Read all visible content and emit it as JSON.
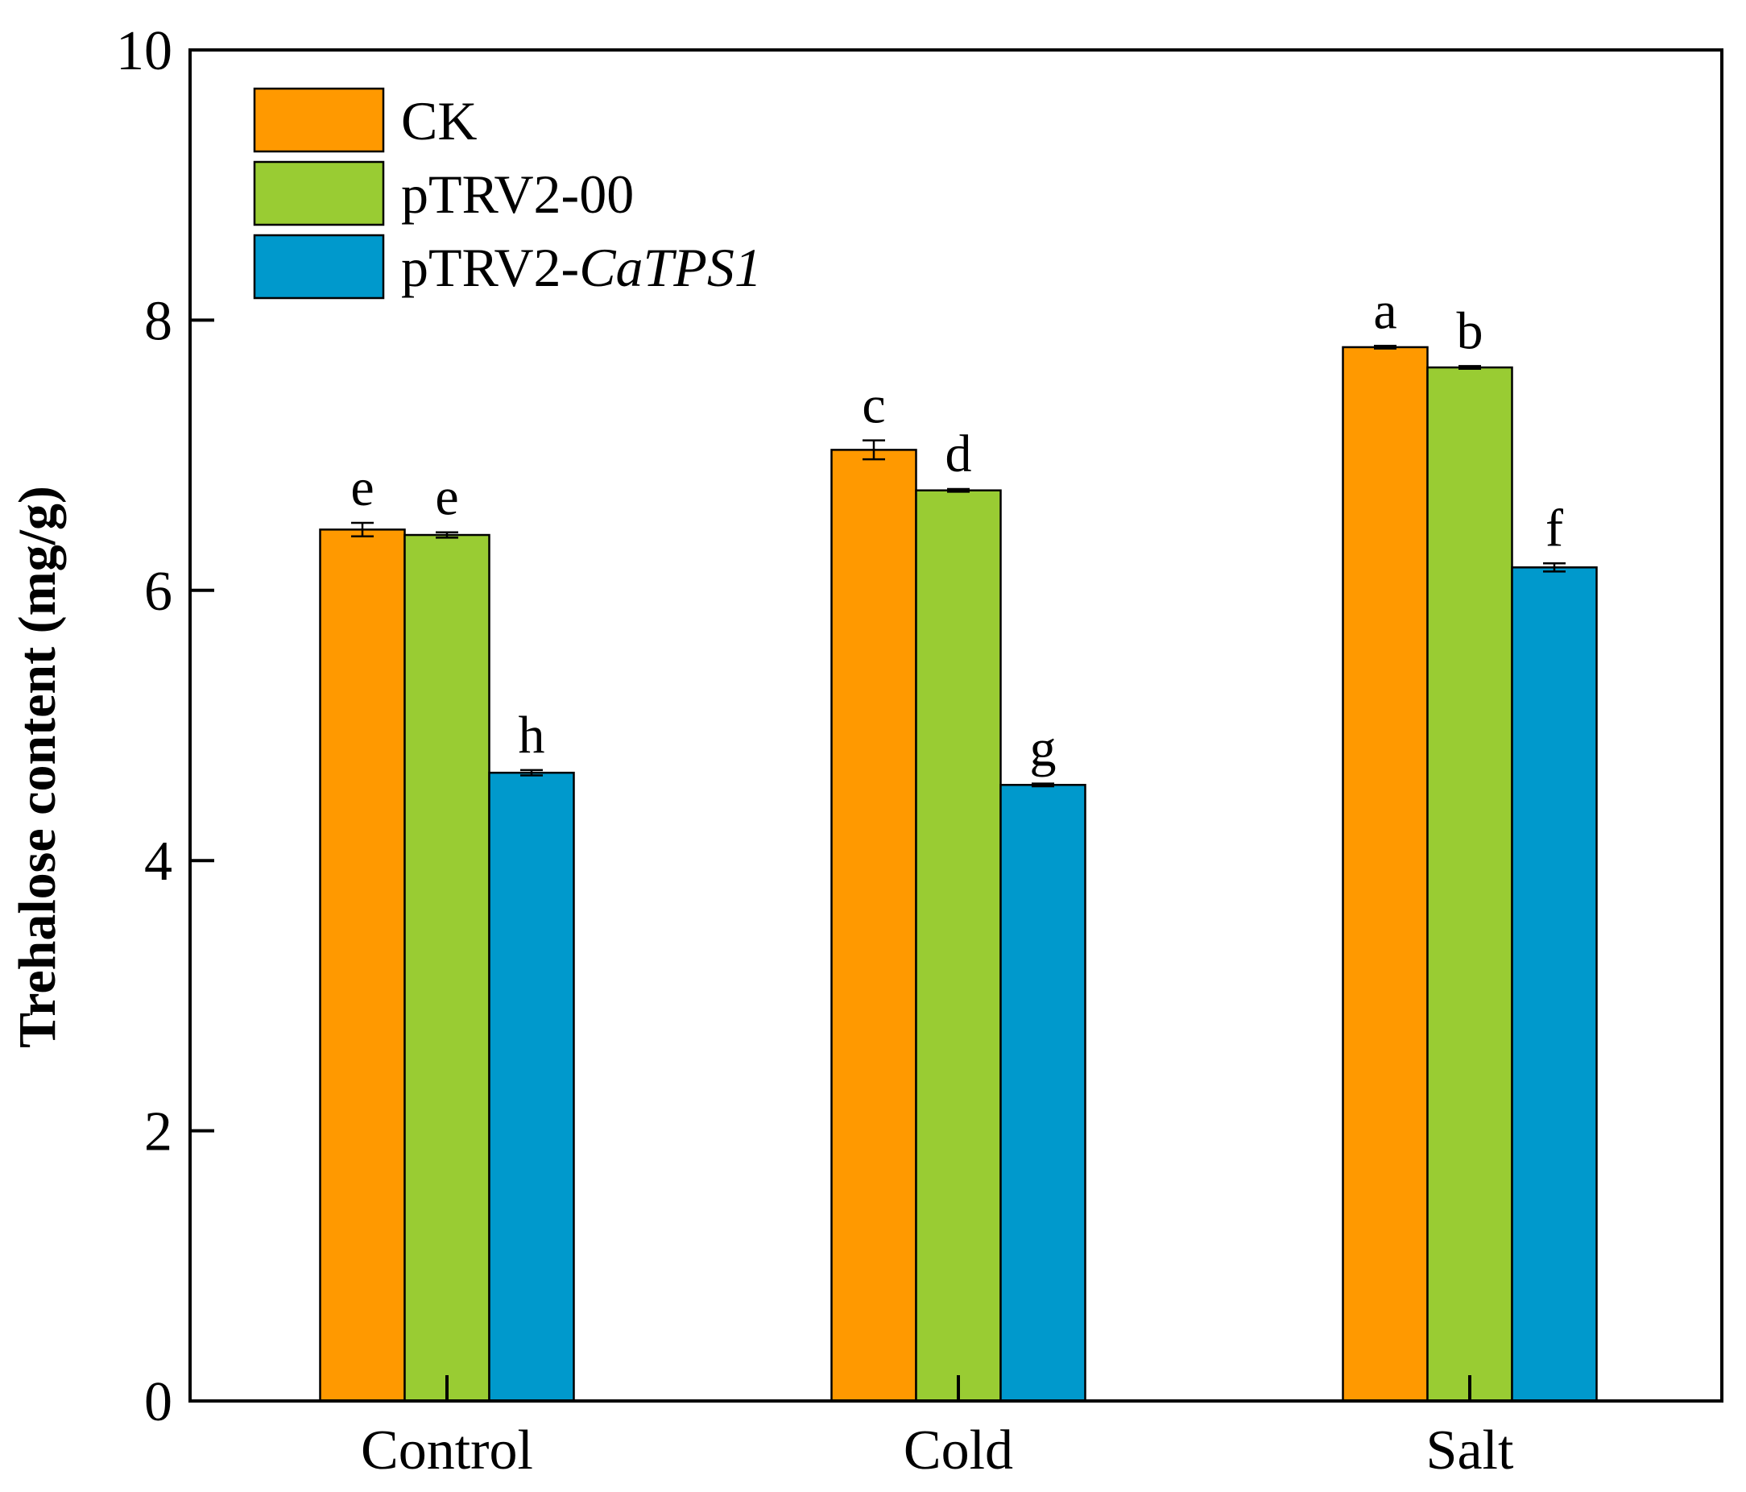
{
  "chart_data": {
    "type": "bar",
    "title": "",
    "xlabel": "",
    "ylabel": "Trehalose  content (mg/g)",
    "ylim": [
      0,
      10
    ],
    "yticks": [
      0,
      2,
      4,
      6,
      8,
      10
    ],
    "yticks_labels": [
      "0",
      "2",
      "4",
      "6",
      "8",
      "10"
    ],
    "categories": [
      "Control",
      "Cold",
      "Salt"
    ],
    "legend_position": "top-left",
    "series": [
      {
        "name": "CK",
        "legend_prefix": "CK",
        "legend_italic": "",
        "color": "#ff9900",
        "values": [
          6.45,
          7.04,
          7.8
        ],
        "errors": [
          0.05,
          0.07,
          0.01
        ],
        "letters": [
          "e",
          "c",
          "a"
        ]
      },
      {
        "name": "pTRV2-00",
        "legend_prefix": "pTRV2-00",
        "legend_italic": "",
        "color": "#99cc33",
        "values": [
          6.41,
          6.74,
          7.65
        ],
        "errors": [
          0.02,
          0.01,
          0.01
        ],
        "letters": [
          "e",
          "d",
          "b"
        ]
      },
      {
        "name": "pTRV2-CaTPS1",
        "legend_prefix": "pTRV2-",
        "legend_italic": "CaTPS1",
        "color": "#0099cc",
        "values": [
          4.65,
          4.56,
          6.17
        ],
        "errors": [
          0.02,
          0.01,
          0.03
        ],
        "letters": [
          "h",
          "g",
          "f"
        ]
      }
    ]
  }
}
